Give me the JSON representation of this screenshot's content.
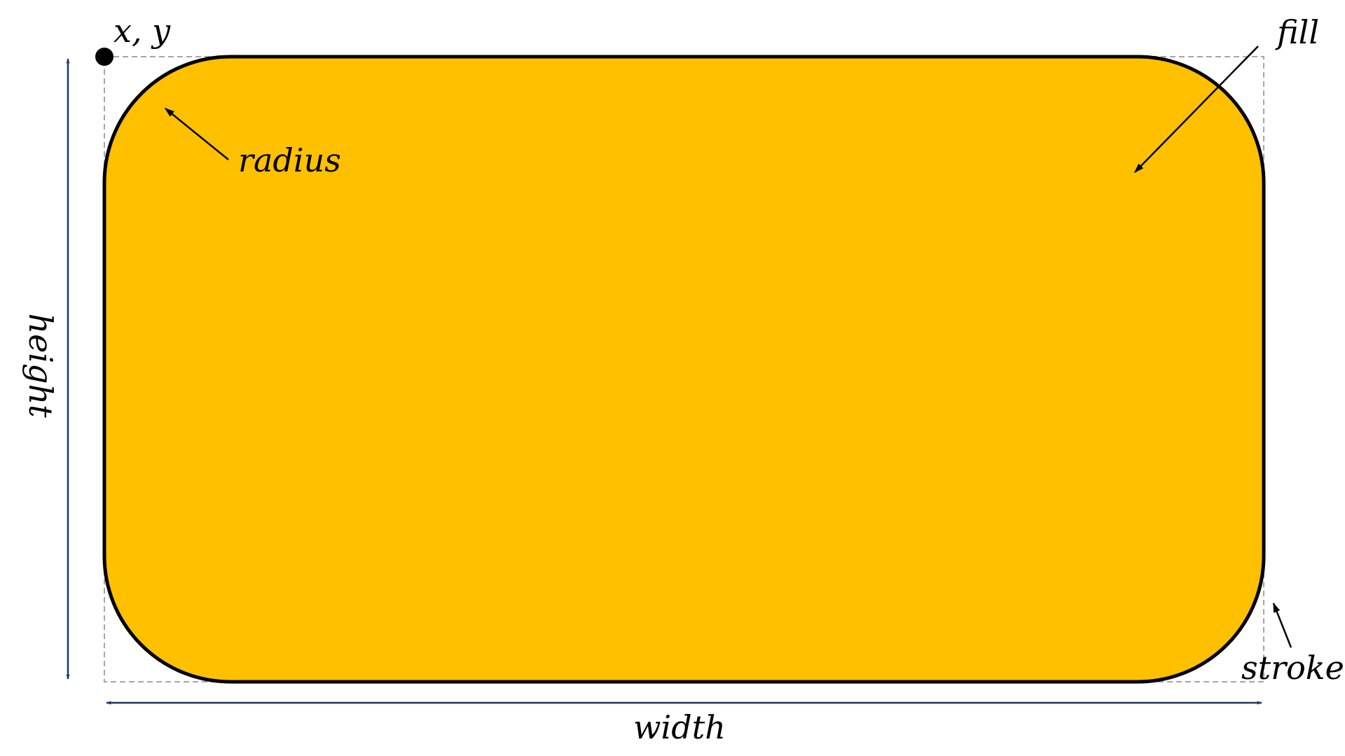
{
  "labels": {
    "origin": "x, y",
    "radius": "radius",
    "fill": "fill",
    "height": "height",
    "width": "width",
    "stroke": "stroke"
  },
  "colors": {
    "shape_fill": "#FFC000",
    "shape_stroke": "#000000",
    "bounding_box": "#A6A6A6",
    "dimension_arrows": "#1F3864",
    "pointer_arrows": "#000000"
  }
}
